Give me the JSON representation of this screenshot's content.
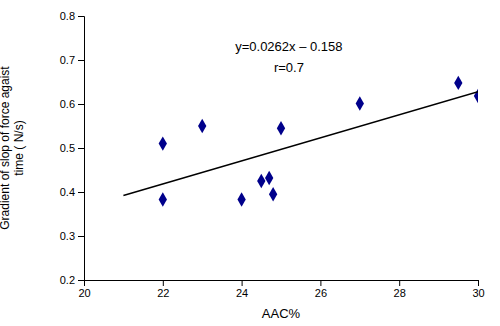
{
  "chart_data": {
    "type": "scatter",
    "xlabel": "AAC%",
    "ylabel": "Gradient of slop of force agaist\ntime ( N/s)",
    "annotations": [
      "y=0.0262x – 0.158",
      "r=0.7"
    ],
    "series": [
      {
        "type": "scatter",
        "color": "#00008B",
        "marker": "diamond",
        "x": [
          22,
          22,
          23,
          24,
          24.5,
          24.7,
          24.8,
          25,
          27,
          29.5,
          30
        ],
        "values": [
          0.383,
          0.51,
          0.55,
          0.383,
          0.425,
          0.432,
          0.395,
          0.545,
          0.601,
          0.648,
          0.618
        ]
      },
      {
        "type": "line",
        "color": "black",
        "line_style": "solid",
        "x": [
          21,
          30
        ],
        "values": [
          0.3922,
          0.628
        ]
      }
    ],
    "xlim": [
      20,
      30
    ],
    "ylim": [
      0.2,
      0.8
    ],
    "xticks": [
      20,
      22,
      24,
      26,
      28,
      30
    ],
    "yticks": [
      0.2,
      0.3,
      0.4,
      0.5,
      0.6,
      0.7,
      0.8
    ],
    "grid": false
  }
}
